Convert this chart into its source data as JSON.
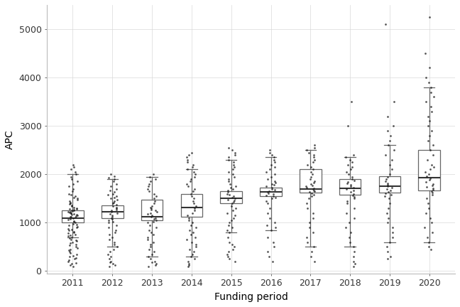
{
  "years": [
    2011,
    2012,
    2013,
    2014,
    2015,
    2016,
    2017,
    2018,
    2019,
    2020
  ],
  "box_stats": {
    "2011": {
      "whislo": 700,
      "q1": 1000,
      "med": 1090,
      "q3": 1250,
      "whishi": 2000
    },
    "2012": {
      "whislo": 500,
      "q1": 1100,
      "med": 1230,
      "q3": 1360,
      "whishi": 1900
    },
    "2013": {
      "whislo": 300,
      "q1": 1050,
      "med": 1130,
      "q3": 1480,
      "whishi": 1950
    },
    "2014": {
      "whislo": 300,
      "q1": 1120,
      "med": 1310,
      "q3": 1600,
      "whishi": 2100
    },
    "2015": {
      "whislo": 800,
      "q1": 1400,
      "med": 1510,
      "q3": 1650,
      "whishi": 2300
    },
    "2016": {
      "whislo": 850,
      "q1": 1550,
      "med": 1630,
      "q3": 1730,
      "whishi": 2350
    },
    "2017": {
      "whislo": 500,
      "q1": 1620,
      "med": 1700,
      "q3": 2100,
      "whishi": 2500
    },
    "2018": {
      "whislo": 500,
      "q1": 1580,
      "med": 1710,
      "q3": 1900,
      "whishi": 2350
    },
    "2019": {
      "whislo": 600,
      "q1": 1620,
      "med": 1760,
      "q3": 1960,
      "whishi": 2600
    },
    "2020": {
      "whislo": 600,
      "q1": 1670,
      "med": 1930,
      "q3": 2500,
      "whishi": 3800
    }
  },
  "scatter_data": {
    "2011": [
      100,
      130,
      150,
      170,
      200,
      220,
      250,
      270,
      300,
      320,
      350,
      380,
      400,
      430,
      450,
      480,
      500,
      530,
      550,
      580,
      600,
      620,
      640,
      660,
      680,
      700,
      720,
      740,
      760,
      780,
      800,
      820,
      840,
      860,
      880,
      900,
      920,
      940,
      960,
      980,
      1000,
      1020,
      1040,
      1060,
      1080,
      1100,
      1110,
      1120,
      1130,
      1140,
      1150,
      1160,
      1170,
      1180,
      1190,
      1200,
      1210,
      1220,
      1230,
      1240,
      1250,
      1260,
      1270,
      1280,
      1290,
      1300,
      1320,
      1340,
      1360,
      1380,
      1400,
      1420,
      1450,
      1480,
      1500,
      1520,
      1550,
      1580,
      1600,
      1650,
      1700,
      1750,
      1800,
      1850,
      1900,
      1950,
      2000,
      2050,
      2100,
      2150,
      2200
    ],
    "2012": [
      100,
      130,
      150,
      180,
      200,
      250,
      300,
      350,
      400,
      450,
      500,
      550,
      600,
      650,
      700,
      750,
      800,
      850,
      900,
      950,
      1000,
      1020,
      1050,
      1080,
      1100,
      1120,
      1150,
      1180,
      1200,
      1220,
      1250,
      1270,
      1300,
      1320,
      1350,
      1370,
      1400,
      1420,
      1450,
      1480,
      1500,
      1520,
      1550,
      1580,
      1600,
      1630,
      1660,
      1700,
      1750,
      1800,
      1850,
      1900,
      1930,
      1960,
      2000
    ],
    "2013": [
      100,
      130,
      150,
      180,
      200,
      250,
      300,
      350,
      400,
      450,
      500,
      550,
      600,
      650,
      700,
      750,
      800,
      850,
      900,
      950,
      1000,
      1020,
      1050,
      1080,
      1100,
      1120,
      1150,
      1180,
      1200,
      1220,
      1250,
      1270,
      1300,
      1320,
      1350,
      1400,
      1450,
      1500,
      1550,
      1600,
      1650,
      1700,
      1750,
      1800,
      1850,
      1900,
      1950,
      2000
    ],
    "2014": [
      100,
      130,
      150,
      200,
      250,
      300,
      350,
      400,
      450,
      500,
      550,
      600,
      650,
      700,
      750,
      800,
      850,
      900,
      950,
      1000,
      1050,
      1100,
      1150,
      1200,
      1250,
      1300,
      1350,
      1400,
      1450,
      1500,
      1550,
      1600,
      1650,
      1700,
      1750,
      1800,
      1850,
      1900,
      1950,
      2000,
      2050,
      2100,
      2150,
      2200,
      2250,
      2300,
      2350,
      2400,
      2450
    ],
    "2015": [
      200,
      250,
      300,
      350,
      400,
      450,
      500,
      550,
      600,
      700,
      800,
      850,
      900,
      950,
      1000,
      1050,
      1100,
      1150,
      1200,
      1250,
      1300,
      1350,
      1400,
      1430,
      1460,
      1480,
      1500,
      1520,
      1550,
      1580,
      1600,
      1630,
      1660,
      1700,
      1730,
      1760,
      1800,
      1850,
      1900,
      1950,
      2000,
      2050,
      2100,
      2150,
      2200,
      2250,
      2300,
      2350,
      2400,
      2450,
      2500,
      2550
    ],
    "2016": [
      200,
      300,
      400,
      500,
      600,
      700,
      850,
      900,
      950,
      1000,
      1100,
      1200,
      1300,
      1400,
      1450,
      1500,
      1520,
      1550,
      1570,
      1590,
      1610,
      1630,
      1650,
      1680,
      1700,
      1720,
      1750,
      1780,
      1800,
      1830,
      1860,
      1900,
      1950,
      2000,
      2050,
      2100,
      2150,
      2200,
      2250,
      2300,
      2350,
      2400,
      2450,
      2500
    ],
    "2017": [
      200,
      300,
      400,
      500,
      600,
      700,
      800,
      900,
      1000,
      1100,
      1200,
      1300,
      1400,
      1500,
      1550,
      1580,
      1610,
      1630,
      1650,
      1670,
      1690,
      1710,
      1730,
      1750,
      1770,
      1800,
      1830,
      1860,
      1900,
      1950,
      2000,
      2050,
      2100,
      2150,
      2200,
      2250,
      2300,
      2350,
      2400,
      2450,
      2500,
      2550,
      2600
    ],
    "2018": [
      100,
      150,
      200,
      300,
      400,
      500,
      600,
      700,
      800,
      900,
      1000,
      1100,
      1200,
      1300,
      1400,
      1450,
      1500,
      1540,
      1570,
      1600,
      1630,
      1660,
      1690,
      1720,
      1750,
      1780,
      1810,
      1840,
      1870,
      1900,
      1950,
      2000,
      2050,
      2100,
      2150,
      2200,
      2250,
      2300,
      2350,
      2400,
      3000,
      3500
    ],
    "2019": [
      250,
      300,
      400,
      500,
      600,
      700,
      800,
      900,
      1000,
      1100,
      1200,
      1300,
      1400,
      1500,
      1550,
      1580,
      1610,
      1640,
      1670,
      1700,
      1730,
      1760,
      1790,
      1820,
      1860,
      1900,
      1950,
      2000,
      2100,
      2200,
      2300,
      2400,
      2500,
      2600,
      2700,
      2800,
      2900,
      3000,
      3200,
      3500,
      5100
    ],
    "2020": [
      450,
      500,
      600,
      700,
      800,
      900,
      1000,
      1100,
      1200,
      1300,
      1400,
      1500,
      1580,
      1620,
      1650,
      1680,
      1710,
      1740,
      1770,
      1800,
      1840,
      1880,
      1920,
      1960,
      2000,
      2050,
      2100,
      2150,
      2200,
      2300,
      2400,
      2500,
      2600,
      2700,
      2800,
      2900,
      3000,
      3100,
      3200,
      3300,
      3400,
      3500,
      3600,
      3700,
      3800,
      3900,
      4000,
      4200,
      4500,
      5250
    ]
  },
  "title": "",
  "xlabel": "Funding period",
  "ylabel": "APC",
  "ylim": [
    -50,
    5500
  ],
  "yticks": [
    0,
    1000,
    2000,
    3000,
    4000,
    5000
  ],
  "background_color": "#ffffff",
  "grid_color": "#d9d9d9",
  "box_color": "#ffffff",
  "box_edge_color": "#666666",
  "median_color": "#333333",
  "whisker_color": "#666666",
  "flier_color": "#1a1a1a",
  "flier_size": 1.8
}
